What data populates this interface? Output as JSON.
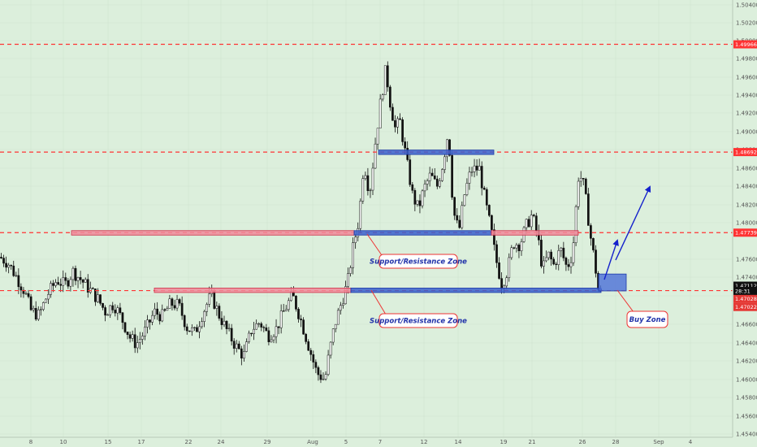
{
  "chart_data": {
    "type": "candlestick",
    "x_ticks": [
      "8",
      "10",
      "15",
      "17",
      "22",
      "24",
      "29",
      "Aug",
      "5",
      "7",
      "12",
      "14",
      "19",
      "21",
      "26",
      "28",
      "Sep",
      "4"
    ],
    "y_ticks": [
      "1.50400",
      "1.50200",
      "1.50000",
      "1.49800",
      "1.49600",
      "1.49400",
      "1.49200",
      "1.49000",
      "1.48800",
      "1.48600",
      "1.48400",
      "1.48200",
      "1.48000",
      "1.47600",
      "1.47400",
      "1.47200",
      "1.46600",
      "1.46400",
      "1.46200",
      "1.46000",
      "1.45800",
      "1.45600",
      "1.45400"
    ],
    "y_range": [
      1.4532,
      1.5049
    ],
    "levels": [
      {
        "price": 1.49966,
        "label": "1.49966",
        "color": "#ff3333"
      },
      {
        "price": 1.48692,
        "label": "1.48692",
        "color": "#ff3333"
      },
      {
        "price": 1.47739,
        "label": "1.47739",
        "color": "#ff3333"
      },
      {
        "price": 1.47054,
        "label": "",
        "color": "#ff3333"
      }
    ],
    "price_tags": [
      {
        "price": 1.47112,
        "label": "1.47112",
        "color": "#111111"
      },
      {
        "price": 1.4705,
        "label": "28:31",
        "color": "#111111"
      },
      {
        "price": 1.46955,
        "label": "1.47028",
        "color": "#e53935"
      },
      {
        "price": 1.4686,
        "label": "1.47022",
        "color": "#e53935"
      }
    ],
    "zones": [
      {
        "x0": 88,
        "x1": 436,
        "price": 1.47739,
        "color": "red"
      },
      {
        "x0": 436,
        "x1": 605,
        "price": 1.47739,
        "color": "blue"
      },
      {
        "x0": 605,
        "x1": 712,
        "price": 1.47739,
        "color": "red"
      },
      {
        "x0": 466,
        "x1": 608,
        "price": 1.48692,
        "color": "blue"
      },
      {
        "x0": 190,
        "x1": 432,
        "price": 1.4706,
        "color": "red"
      },
      {
        "x0": 432,
        "x1": 740,
        "price": 1.4706,
        "color": "blue"
      }
    ],
    "buy_zone": {
      "price_top": 1.4725,
      "price_bottom": 1.4705
    },
    "annotations": [
      {
        "text": "Support/Resistance Zone"
      },
      {
        "text": "Support/Resistance Zone"
      },
      {
        "text": "Buy Zone"
      }
    ],
    "path": [
      [
        0,
        1.4745
      ],
      [
        10,
        1.4738
      ],
      [
        20,
        1.4722
      ],
      [
        30,
        1.4705
      ],
      [
        38,
        1.4682
      ],
      [
        48,
        1.4676
      ],
      [
        58,
        1.47
      ],
      [
        70,
        1.4718
      ],
      [
        80,
        1.4712
      ],
      [
        90,
        1.4728
      ],
      [
        100,
        1.4718
      ],
      [
        110,
        1.4707
      ],
      [
        120,
        1.4696
      ],
      [
        130,
        1.468
      ],
      [
        140,
        1.469
      ],
      [
        150,
        1.4672
      ],
      [
        160,
        1.465
      ],
      [
        168,
        1.4642
      ],
      [
        180,
        1.466
      ],
      [
        190,
        1.468
      ],
      [
        200,
        1.4675
      ],
      [
        210,
        1.469
      ],
      [
        220,
        1.4688
      ],
      [
        230,
        1.4662
      ],
      [
        240,
        1.4655
      ],
      [
        250,
        1.468
      ],
      [
        260,
        1.47
      ],
      [
        270,
        1.4676
      ],
      [
        280,
        1.4657
      ],
      [
        290,
        1.464
      ],
      [
        300,
        1.4628
      ],
      [
        310,
        1.466
      ],
      [
        320,
        1.4668
      ],
      [
        330,
        1.4652
      ],
      [
        340,
        1.466
      ],
      [
        350,
        1.4682
      ],
      [
        360,
        1.47
      ],
      [
        370,
        1.4672
      ],
      [
        380,
        1.464
      ],
      [
        390,
        1.4608
      ],
      [
        400,
        1.46
      ],
      [
        405,
        1.463
      ],
      [
        412,
        1.4665
      ],
      [
        420,
        1.469
      ],
      [
        428,
        1.4715
      ],
      [
        435,
        1.4758
      ],
      [
        442,
        1.479
      ],
      [
        448,
        1.4858
      ],
      [
        455,
        1.482
      ],
      [
        462,
        1.488
      ],
      [
        468,
        1.4925
      ],
      [
        475,
        1.4968
      ],
      [
        480,
        1.493
      ],
      [
        487,
        1.4895
      ],
      [
        492,
        1.4908
      ],
      [
        500,
        1.4862
      ],
      [
        508,
        1.4818
      ],
      [
        515,
        1.4802
      ],
      [
        522,
        1.4826
      ],
      [
        530,
        1.4842
      ],
      [
        538,
        1.4828
      ],
      [
        545,
        1.4855
      ],
      [
        552,
        1.4895
      ],
      [
        558,
        1.48
      ],
      [
        565,
        1.4775
      ],
      [
        572,
        1.482
      ],
      [
        580,
        1.4848
      ],
      [
        590,
        1.485
      ],
      [
        598,
        1.4808
      ],
      [
        605,
        1.4775
      ],
      [
        610,
        1.4745
      ],
      [
        618,
        1.4712
      ],
      [
        625,
        1.473
      ],
      [
        632,
        1.4762
      ],
      [
        640,
        1.476
      ],
      [
        648,
        1.4782
      ],
      [
        655,
        1.4795
      ],
      [
        662,
        1.477
      ],
      [
        668,
        1.473
      ],
      [
        675,
        1.4748
      ],
      [
        682,
        1.4735
      ],
      [
        690,
        1.4755
      ],
      [
        698,
        1.4732
      ],
      [
        705,
        1.475
      ],
      [
        712,
        1.484
      ],
      [
        717,
        1.4838
      ],
      [
        722,
        1.4808
      ],
      [
        727,
        1.477
      ],
      [
        732,
        1.474
      ],
      [
        737,
        1.4704
      ],
      [
        742,
        1.47
      ]
    ]
  }
}
